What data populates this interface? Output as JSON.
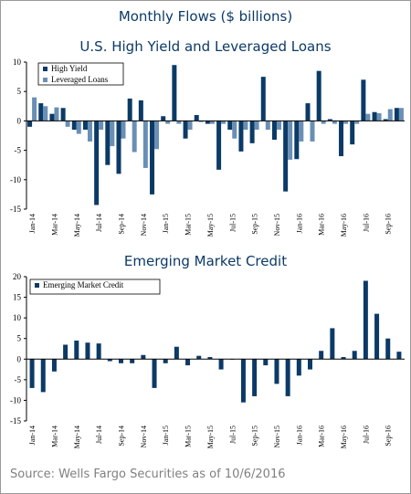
{
  "header": {
    "title": "Monthly Flows ($ billions)",
    "source": "Source: Wells Fargo Securities as of 10/6/2016"
  },
  "colors": {
    "dark_blue": "#0b3a66",
    "light_blue": "#6a8fb5",
    "axis": "#000000"
  },
  "chart_data": [
    {
      "type": "bar",
      "title": "U.S. High Yield and Leveraged Loans",
      "xlabel": "",
      "ylabel": "",
      "ylim": [
        -15,
        10
      ],
      "yticks": [
        10,
        5,
        0,
        -5,
        -10,
        -15
      ],
      "legend_placement": "top-left",
      "categories": [
        "Jan-14",
        "Feb-14",
        "Mar-14",
        "Apr-14",
        "May-14",
        "Jun-14",
        "Jul-14",
        "Aug-14",
        "Sep-14",
        "Oct-14",
        "Nov-14",
        "Dec-14",
        "Jan-15",
        "Feb-15",
        "Mar-15",
        "Apr-15",
        "May-15",
        "Jun-15",
        "Jul-15",
        "Aug-15",
        "Sep-15",
        "Oct-15",
        "Nov-15",
        "Dec-15",
        "Jan-16",
        "Feb-16",
        "Mar-16",
        "Apr-16",
        "May-16",
        "Jun-16",
        "Jul-16",
        "Aug-16",
        "Sep-16",
        "Oct-16"
      ],
      "tick_labels": [
        "Jan-14",
        "",
        "Mar-14",
        "",
        "May-14",
        "",
        "Jul-14",
        "",
        "Sep-14",
        "",
        "Nov-14",
        "",
        "Jan-15",
        "",
        "Mar-15",
        "",
        "May-15",
        "",
        "Jul-15",
        "",
        "Sep-15",
        "",
        "Nov-15",
        "",
        "Jan-16",
        "",
        "Mar-16",
        "",
        "May-16",
        "",
        "Jul-16",
        "",
        "Sep-16",
        ""
      ],
      "series": [
        {
          "name": "High Yield",
          "color": "#0b3a66",
          "values": [
            -1.0,
            3.0,
            1.2,
            2.2,
            -1.5,
            -1.5,
            -14.3,
            -7.5,
            -9.0,
            3.8,
            3.5,
            -12.5,
            0.8,
            9.5,
            -3.0,
            1.0,
            -0.5,
            -8.3,
            -1.5,
            -5.2,
            -3.8,
            7.5,
            -3.2,
            -12.0,
            -6.5,
            3.0,
            8.5,
            0.3,
            -6.0,
            -4.0,
            7.0,
            1.5,
            0.3,
            2.2
          ]
        },
        {
          "name": "Leveraged Loans",
          "color": "#6a8fb5",
          "values": [
            4.0,
            2.5,
            2.3,
            -1.0,
            -2.2,
            -3.5,
            -1.5,
            -4.3,
            -3.0,
            -5.3,
            -8.0,
            -4.8,
            -0.5,
            -0.5,
            -1.5,
            -0.2,
            -0.5,
            -0.5,
            -3.0,
            -1.5,
            -1.5,
            -1.5,
            -1.5,
            -6.6,
            -3.5,
            -3.5,
            -0.5,
            -0.5,
            -0.5,
            -0.5,
            1.2,
            1.3,
            2.0,
            2.2
          ]
        }
      ]
    },
    {
      "type": "bar",
      "title": "Emerging Market Credit",
      "xlabel": "",
      "ylabel": "",
      "ylim": [
        -15,
        20
      ],
      "yticks": [
        20,
        15,
        10,
        5,
        0,
        -5,
        -10,
        -15
      ],
      "legend_placement": "top-left",
      "categories": [
        "Jan-14",
        "Feb-14",
        "Mar-14",
        "Apr-14",
        "May-14",
        "Jun-14",
        "Jul-14",
        "Aug-14",
        "Sep-14",
        "Oct-14",
        "Nov-14",
        "Dec-14",
        "Jan-15",
        "Feb-15",
        "Mar-15",
        "Apr-15",
        "May-15",
        "Jun-15",
        "Jul-15",
        "Aug-15",
        "Sep-15",
        "Oct-15",
        "Nov-15",
        "Dec-15",
        "Jan-16",
        "Feb-16",
        "Mar-16",
        "Apr-16",
        "May-16",
        "Jun-16",
        "Jul-16",
        "Aug-16",
        "Sep-16",
        "Oct-16"
      ],
      "tick_labels": [
        "Jan-14",
        "",
        "Mar-14",
        "",
        "May-14",
        "",
        "Jul-14",
        "",
        "Sep-14",
        "",
        "Nov-14",
        "",
        "Jan-15",
        "",
        "Mar-15",
        "",
        "May-15",
        "",
        "Jul-15",
        "",
        "Sep-15",
        "",
        "Nov-15",
        "",
        "Jan-16",
        "",
        "Mar-16",
        "",
        "May-16",
        "",
        "Jul-16",
        "",
        "Sep-16",
        ""
      ],
      "series": [
        {
          "name": "Emerging Market Credit",
          "color": "#0b3a66",
          "values": [
            -7.0,
            -8.0,
            -3.0,
            3.5,
            4.5,
            4.0,
            3.8,
            -0.5,
            -1.0,
            -1.0,
            1.0,
            -7.0,
            -1.0,
            3.0,
            -1.5,
            0.8,
            0.5,
            -2.5,
            0.0,
            -10.5,
            -9.0,
            -1.5,
            -6.0,
            -9.0,
            -4.0,
            -2.5,
            2.0,
            7.5,
            0.5,
            2.0,
            19.0,
            11.0,
            5.0,
            1.8
          ]
        }
      ]
    }
  ]
}
